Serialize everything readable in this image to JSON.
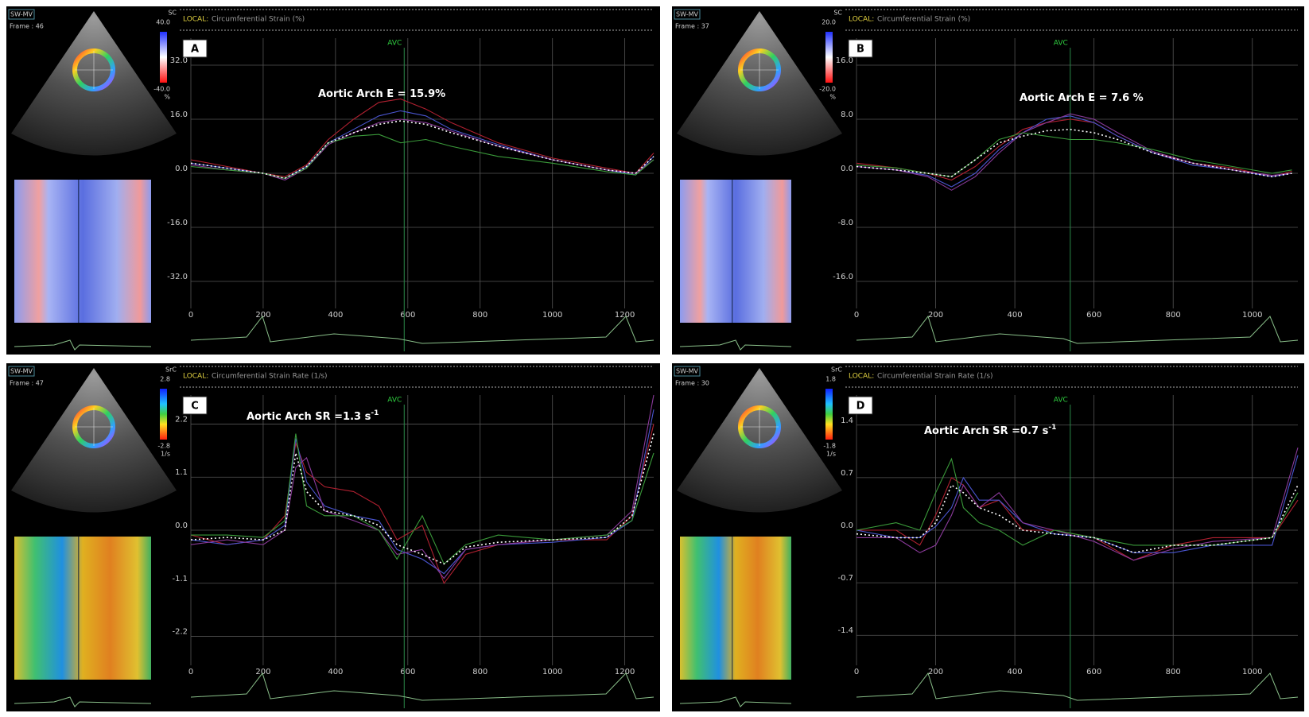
{
  "chart_data": [
    {
      "type": "line",
      "panel": "A",
      "title_prefix": "LOCAL:",
      "title": "Circumferential Strain (%)",
      "annotation": {
        "text": "Aortic Arch E = 15.9%"
      },
      "avc": {
        "label": "AVC",
        "x": 590
      },
      "sidebar": {
        "view": "SW-MV",
        "frame": "Frame : 46",
        "scale_title": "SC",
        "scale_max": "40.0",
        "scale_min": "-40.0",
        "scale_unit": "%"
      },
      "x": [
        0,
        100,
        200,
        260,
        320,
        380,
        450,
        520,
        580,
        650,
        720,
        850,
        1000,
        1150,
        1230,
        1280
      ],
      "series": [
        {
          "color": "#b02030",
          "values": [
            4,
            2,
            0,
            -1,
            2.5,
            10,
            16,
            21,
            22,
            19,
            15,
            9,
            4.5,
            1.5,
            0,
            6
          ]
        },
        {
          "color": "#4a55d0",
          "values": [
            3,
            1.5,
            0,
            -1.5,
            2,
            9,
            13,
            17,
            18.5,
            17,
            13,
            8.5,
            4,
            1,
            -0.5,
            5
          ]
        },
        {
          "color": "#8a3a9a",
          "values": [
            2.5,
            1,
            0,
            -2,
            1.5,
            8.5,
            12,
            15,
            16,
            15,
            12.5,
            8,
            4,
            1,
            0,
            4
          ]
        },
        {
          "color": "#3a9a3a",
          "values": [
            2,
            1,
            0,
            -1.5,
            1.5,
            9,
            11,
            11.5,
            9,
            10,
            8,
            5,
            3,
            0.5,
            -0.5,
            4
          ]
        },
        {
          "color": "#ffffff",
          "dash": true,
          "values": [
            3,
            1.5,
            0,
            -1.5,
            2,
            9,
            12,
            14.5,
            15.5,
            14.5,
            12,
            8,
            4,
            1,
            0,
            5
          ]
        }
      ],
      "xlim": [
        0,
        1280
      ],
      "xticks": [
        0,
        200,
        400,
        600,
        800,
        1000,
        1200
      ],
      "ylim": [
        -40,
        40
      ],
      "yticks": [
        {
          "value": 32,
          "label": "32.0"
        },
        {
          "value": 16,
          "label": "16.0"
        },
        {
          "value": 0,
          "label": "0.0"
        },
        {
          "value": -16,
          "label": "-16.0"
        },
        {
          "value": -32,
          "label": "-32.0"
        }
      ],
      "grid": true
    },
    {
      "type": "line",
      "panel": "B",
      "title_prefix": "LOCAL:",
      "title": "Circumferential Strain (%)",
      "annotation": {
        "text": "Aortic Arch E = 7.6 %"
      },
      "avc": {
        "label": "AVC",
        "x": 540
      },
      "sidebar": {
        "view": "SW-MV",
        "frame": "Frame : 37",
        "scale_title": "SC",
        "scale_max": "20.0",
        "scale_min": "-20.0",
        "scale_unit": "%"
      },
      "x": [
        0,
        100,
        180,
        240,
        300,
        360,
        420,
        480,
        540,
        600,
        660,
        750,
        850,
        950,
        1050,
        1100
      ],
      "series": [
        {
          "color": "#b02030",
          "values": [
            1.5,
            0.8,
            0,
            -1,
            1,
            4,
            6.5,
            7.5,
            8,
            7.5,
            5.5,
            3,
            1.5,
            0.8,
            -0.5,
            0.3
          ]
        },
        {
          "color": "#4a55d0",
          "values": [
            1,
            0.5,
            -0.3,
            -2,
            0,
            3.5,
            6,
            8,
            8.5,
            7.5,
            5.5,
            3,
            1.2,
            0.5,
            -0.5,
            0
          ]
        },
        {
          "color": "#8a3a9a",
          "values": [
            1,
            0.5,
            -0.5,
            -2.5,
            -0.5,
            3,
            6,
            7.5,
            8.8,
            8,
            6,
            3.2,
            1.5,
            0.5,
            -0.3,
            0
          ]
        },
        {
          "color": "#3a9a3a",
          "values": [
            1.2,
            0.8,
            0,
            -0.5,
            2,
            5,
            6,
            5.5,
            5,
            5,
            4.5,
            3.5,
            2,
            1,
            0,
            0.5
          ]
        },
        {
          "color": "#ffffff",
          "dash": true,
          "values": [
            1,
            0.5,
            0,
            -0.5,
            2,
            4.5,
            5.5,
            6.3,
            6.5,
            6,
            5,
            3,
            1.5,
            0.5,
            -0.5,
            0
          ]
        }
      ],
      "xlim": [
        0,
        1115
      ],
      "xticks": [
        0,
        200,
        400,
        600,
        800,
        1000
      ],
      "ylim": [
        -20,
        20
      ],
      "yticks": [
        {
          "value": 16,
          "label": "16.0"
        },
        {
          "value": 8,
          "label": "8.0"
        },
        {
          "value": 0,
          "label": "0.0"
        },
        {
          "value": -8,
          "label": "-8.0"
        },
        {
          "value": -16,
          "label": "-16.0"
        }
      ],
      "grid": true
    },
    {
      "type": "line",
      "panel": "C",
      "title_prefix": "LOCAL:",
      "title": "Circumferential Strain Rate (1/s)",
      "annotation": {
        "text": "Aortic Arch SR =1.3 s",
        "superscript": "-1"
      },
      "avc": {
        "label": "AVC",
        "x": 590
      },
      "sidebar": {
        "view": "SW-MV",
        "frame": "Frame : 47",
        "scale_title": "SrC",
        "scale_max": "2.8",
        "scale_min": "-2.8",
        "scale_unit": "1/s"
      },
      "x": [
        0,
        100,
        200,
        260,
        290,
        320,
        370,
        450,
        520,
        570,
        640,
        700,
        760,
        850,
        1000,
        1150,
        1220,
        1280
      ],
      "series": [
        {
          "color": "#b02030",
          "values": [
            -0.1,
            -0.3,
            -0.2,
            0.3,
            1.8,
            1.2,
            0.9,
            0.8,
            0.5,
            -0.2,
            0.1,
            -1.1,
            -0.5,
            -0.3,
            -0.2,
            -0.2,
            0.3,
            2.2
          ]
        },
        {
          "color": "#4a55d0",
          "values": [
            -0.2,
            -0.3,
            -0.2,
            0.1,
            1.9,
            1.0,
            0.5,
            0.3,
            0.2,
            -0.4,
            -0.6,
            -0.9,
            -0.4,
            -0.3,
            -0.25,
            -0.15,
            0.2,
            2.5
          ]
        },
        {
          "color": "#8a3a9a",
          "values": [
            -0.3,
            -0.2,
            -0.3,
            0,
            1.3,
            1.5,
            0.4,
            0.2,
            0,
            -0.5,
            -0.4,
            -1.0,
            -0.4,
            -0.3,
            -0.2,
            -0.1,
            0.4,
            2.8
          ]
        },
        {
          "color": "#3a9a3a",
          "values": [
            -0.1,
            -0.1,
            -0.15,
            0.2,
            2.0,
            0.5,
            0.3,
            0.3,
            0,
            -0.6,
            0.3,
            -0.7,
            -0.3,
            -0.1,
            -0.2,
            -0.1,
            0.2,
            1.6
          ]
        },
        {
          "color": "#ffffff",
          "dash": true,
          "values": [
            -0.2,
            -0.15,
            -0.2,
            0,
            1.6,
            0.8,
            0.4,
            0.3,
            0.1,
            -0.3,
            -0.5,
            -0.7,
            -0.35,
            -0.25,
            -0.2,
            -0.15,
            0.3,
            2
          ]
        }
      ],
      "xlim": [
        0,
        1280
      ],
      "xticks": [
        0,
        200,
        400,
        600,
        800,
        1000,
        1200
      ],
      "ylim": [
        -2.8,
        2.8
      ],
      "yticks": [
        2.2,
        1.1,
        {
          "value": 0,
          "label": "0.0"
        },
        -1.1,
        -2.2
      ],
      "grid": true
    },
    {
      "type": "line",
      "panel": "D",
      "title_prefix": "LOCAL:",
      "title": "Circumferential Strain Rate (1/s)",
      "annotation": {
        "text": "Aortic Arch SR =0.7 s",
        "superscript": "-1"
      },
      "avc": {
        "label": "AVC",
        "x": 540
      },
      "sidebar": {
        "view": "SW-MV",
        "frame": "Frame : 30",
        "scale_title": "SrC",
        "scale_max": "1.8",
        "scale_min": "-1.8",
        "scale_unit": "1/s"
      },
      "x": [
        0,
        100,
        160,
        200,
        240,
        270,
        310,
        360,
        420,
        500,
        600,
        700,
        800,
        900,
        1050,
        1115
      ],
      "series": [
        {
          "color": "#b02030",
          "values": [
            0,
            0,
            -0.2,
            0.2,
            0.7,
            0.6,
            0.3,
            0.4,
            0,
            0,
            -0.1,
            -0.4,
            -0.2,
            -0.1,
            -0.1,
            0.4
          ]
        },
        {
          "color": "#4a55d0",
          "values": [
            0,
            -0.1,
            -0.1,
            0.05,
            0.3,
            0.7,
            0.4,
            0.4,
            0.1,
            -0.05,
            -0.1,
            -0.3,
            -0.3,
            -0.2,
            -0.2,
            1.0
          ]
        },
        {
          "color": "#8a3a9a",
          "values": [
            -0.1,
            -0.1,
            -0.3,
            -0.2,
            0.2,
            0.6,
            0.3,
            0.5,
            0.1,
            0,
            -0.15,
            -0.4,
            -0.25,
            -0.15,
            -0.1,
            1.1
          ]
        },
        {
          "color": "#3a9a3a",
          "values": [
            0,
            0.1,
            0,
            0.5,
            0.95,
            0.3,
            0.1,
            0,
            -0.2,
            0,
            -0.1,
            -0.2,
            -0.2,
            -0.2,
            -0.1,
            0.5
          ]
        },
        {
          "color": "#ffffff",
          "dash": true,
          "values": [
            -0.05,
            -0.1,
            -0.1,
            0.1,
            0.6,
            0.5,
            0.3,
            0.2,
            0,
            -0.05,
            -0.1,
            -0.3,
            -0.2,
            -0.2,
            -0.1,
            0.6
          ]
        }
      ],
      "xlim": [
        0,
        1115
      ],
      "xticks": [
        0,
        200,
        400,
        600,
        800,
        1000
      ],
      "ylim": [
        -1.8,
        1.8
      ],
      "yticks": [
        1.4,
        0.7,
        {
          "value": 0,
          "label": "0.0"
        },
        -0.7,
        -1.4
      ],
      "grid": true
    }
  ]
}
